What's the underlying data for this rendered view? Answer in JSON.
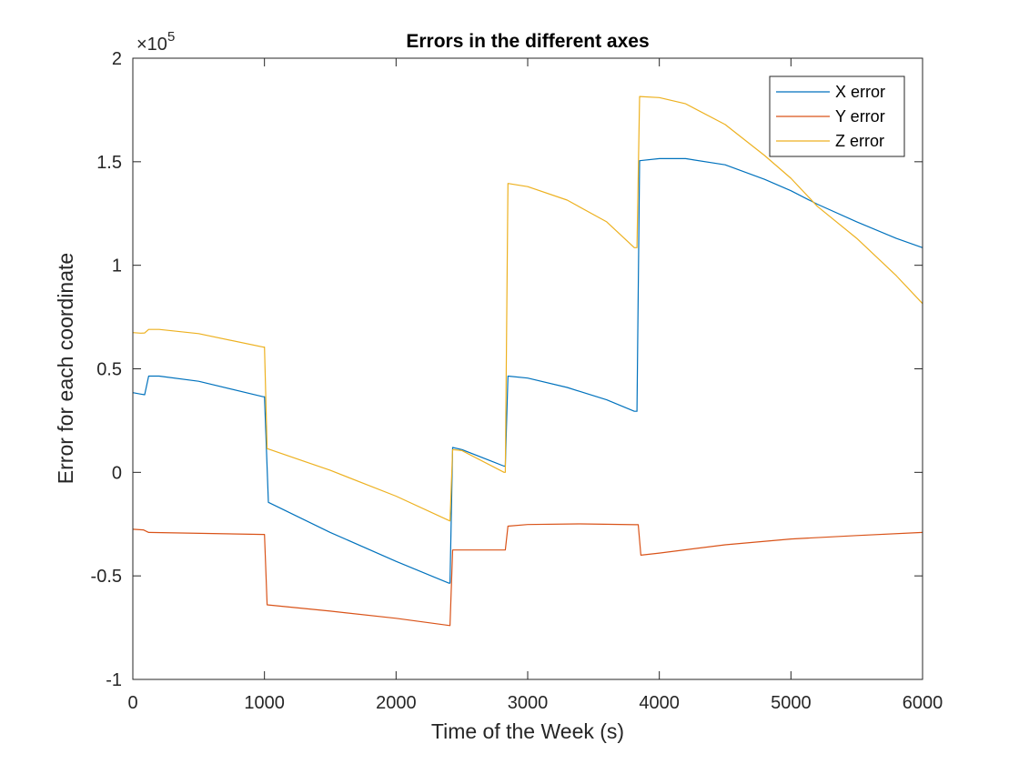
{
  "chart_data": {
    "type": "line",
    "title": "Errors in the different axes",
    "xlabel": "Time of the Week (s)",
    "ylabel": "Error for each coordinate",
    "xlim": [
      0,
      6000
    ],
    "ylim": [
      -100000,
      200000
    ],
    "xticks": [
      0,
      1000,
      2000,
      3000,
      4000,
      5000,
      6000
    ],
    "xtick_labels": [
      "0",
      "1000",
      "2000",
      "3000",
      "4000",
      "5000",
      "6000"
    ],
    "yticks": [
      -100000,
      -50000,
      0,
      50000,
      100000,
      150000,
      200000
    ],
    "ytick_labels": [
      "-1",
      "-0.5",
      "0",
      "0.5",
      "1",
      "1.5",
      "2"
    ],
    "y_exponent_label": "×10",
    "y_exponent_power": "5",
    "grid": false,
    "legend_position": "top-right",
    "series": [
      {
        "name": "X error",
        "color": "#0072BD",
        "points": [
          [
            0,
            38500
          ],
          [
            60,
            37800
          ],
          [
            90,
            37500
          ],
          [
            120,
            46500
          ],
          [
            200,
            46500
          ],
          [
            500,
            44000
          ],
          [
            990,
            36500
          ],
          [
            1000,
            36500
          ],
          [
            1030,
            -14500
          ],
          [
            1500,
            -29000
          ],
          [
            2000,
            -43000
          ],
          [
            2400,
            -53500
          ],
          [
            2410,
            -53500
          ],
          [
            2430,
            12000
          ],
          [
            2500,
            11000
          ],
          [
            2820,
            3000
          ],
          [
            2830,
            3000
          ],
          [
            2850,
            46500
          ],
          [
            3000,
            45500
          ],
          [
            3300,
            41000
          ],
          [
            3600,
            35000
          ],
          [
            3810,
            29500
          ],
          [
            3830,
            29500
          ],
          [
            3850,
            150500
          ],
          [
            4000,
            151500
          ],
          [
            4200,
            151500
          ],
          [
            4500,
            148500
          ],
          [
            4800,
            141500
          ],
          [
            5000,
            136000
          ],
          [
            5200,
            129500
          ],
          [
            5500,
            121000
          ],
          [
            5800,
            113000
          ],
          [
            6000,
            108500
          ]
        ]
      },
      {
        "name": "Y error",
        "color": "#D95319",
        "points": [
          [
            0,
            -27500
          ],
          [
            80,
            -27800
          ],
          [
            120,
            -29000
          ],
          [
            990,
            -30000
          ],
          [
            1000,
            -30000
          ],
          [
            1020,
            -64000
          ],
          [
            1500,
            -67000
          ],
          [
            2000,
            -70500
          ],
          [
            2410,
            -74000
          ],
          [
            2430,
            -37500
          ],
          [
            2800,
            -37500
          ],
          [
            2830,
            -37500
          ],
          [
            2850,
            -26000
          ],
          [
            3000,
            -25200
          ],
          [
            3400,
            -24900
          ],
          [
            3820,
            -25300
          ],
          [
            3840,
            -25300
          ],
          [
            3860,
            -40000
          ],
          [
            4000,
            -39000
          ],
          [
            4500,
            -35000
          ],
          [
            5000,
            -32200
          ],
          [
            5500,
            -30500
          ],
          [
            6000,
            -29000
          ]
        ]
      },
      {
        "name": "Z error",
        "color": "#EDB120",
        "points": [
          [
            0,
            67500
          ],
          [
            60,
            67200
          ],
          [
            90,
            67300
          ],
          [
            120,
            69000
          ],
          [
            200,
            69000
          ],
          [
            500,
            67000
          ],
          [
            990,
            60500
          ],
          [
            1000,
            60500
          ],
          [
            1020,
            11500
          ],
          [
            1500,
            1000
          ],
          [
            2000,
            -11500
          ],
          [
            2410,
            -23500
          ],
          [
            2430,
            11000
          ],
          [
            2500,
            10500
          ],
          [
            2820,
            0
          ],
          [
            2830,
            0
          ],
          [
            2850,
            139500
          ],
          [
            3000,
            138000
          ],
          [
            3300,
            131500
          ],
          [
            3600,
            121000
          ],
          [
            3810,
            108500
          ],
          [
            3830,
            108500
          ],
          [
            3850,
            181500
          ],
          [
            4000,
            181000
          ],
          [
            4200,
            178000
          ],
          [
            4500,
            168000
          ],
          [
            4800,
            153000
          ],
          [
            5000,
            142000
          ],
          [
            5200,
            128500
          ],
          [
            5500,
            113000
          ],
          [
            5800,
            95000
          ],
          [
            6000,
            81500
          ]
        ]
      }
    ]
  }
}
